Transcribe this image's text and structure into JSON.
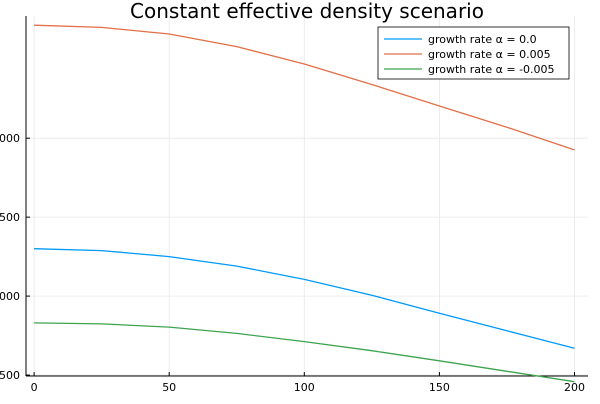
{
  "chart_data": {
    "type": "line",
    "title": "Constant effective density scenario",
    "xlabel": "",
    "ylabel": "",
    "xlim": [
      -3,
      205
    ],
    "ylim": [
      2497,
      3637
    ],
    "x_ticks": [
      0,
      50,
      100,
      150,
      200
    ],
    "x_tick_labels": [
      "0",
      "50",
      "100",
      "150",
      "200"
    ],
    "y_ticks": [
      2500,
      3000,
      3500
    ],
    "y_tick_labels": [
      "500",
      "000",
      "500",
      "000"
    ],
    "y_tick_values_for_labels": [
      2500,
      2750,
      3000,
      3250
    ],
    "grid": true,
    "legend": "top-right",
    "x": [
      0,
      25,
      50,
      75,
      100,
      125,
      150,
      175,
      200
    ],
    "series": [
      {
        "name": "growth rate α = 0.0",
        "color": "#009af9",
        "values": [
          2900,
          2894,
          2875,
          2845,
          2803,
          2753,
          2696,
          2640,
          2585
        ]
      },
      {
        "name": "growth rate α = 0.005",
        "color": "#e26f46",
        "values": [
          3608,
          3601,
          3580,
          3540,
          3485,
          3420,
          3352,
          3285,
          3213
        ]
      },
      {
        "name": "growth rate α = -0.005",
        "color": "#3da44d",
        "values": [
          2665,
          2662,
          2652,
          2632,
          2606,
          2577,
          2545,
          2512,
          2479
        ]
      }
    ]
  },
  "colors": {
    "axis": "#000000",
    "grid": "#e8e8e8",
    "background": "#ffffff"
  }
}
